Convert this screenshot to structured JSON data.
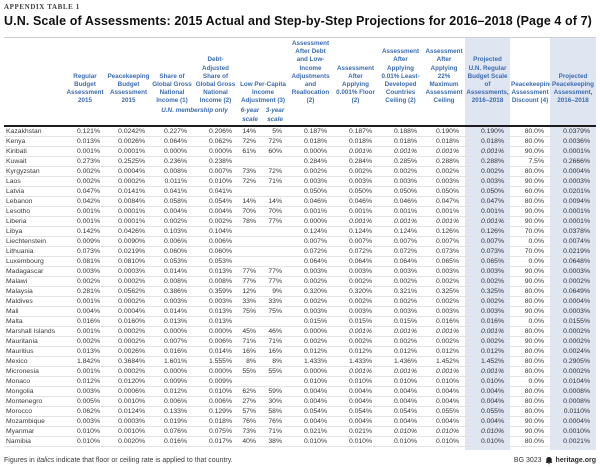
{
  "page": {
    "eyebrow": "APPENDIX TABLE 1",
    "title": "U.N. Scale of Assessments: 2015 Actual and Step-by-Step Projections for 2016–2018 (Page 4 of 7)",
    "footnote": {
      "prefix": "Figures in ",
      "italic_word": "italics",
      "suffix": " indicate that floor or ceiling rate is applied to that country."
    },
    "footer_right": {
      "report_id": "BG 3023",
      "logo_icon": "heritage-bell-logo",
      "site": "heritage.org"
    }
  },
  "colors": {
    "header_blue": "#3c6cb0",
    "highlight_column_bg": "#dfe5f1",
    "thick_rule": "#1c1c1c",
    "row_divider": "#e3e3e3"
  },
  "table": {
    "columns": [
      "",
      "Regular Budget Assess­ment 2015",
      "Peacekeeping Budget Assessment 2015",
      "Share of Global Gross National Income (1)",
      "Debt-Adjusted Share of Global Gross National Income (2)",
      "Low Per-Capita Income Adjustment (3)",
      "Assessment After Debt and Low-Income Adjustments and Reallocation (2)",
      "Assessment After Applying 0.001% Floor (2)",
      "Assessment After Applying 0.01% Least-Developed Countries Ceiling (2)",
      "Assessment After Applying 22% Maximum Assessment Ceiling",
      "Projected U.N. Regular Budget Scale of Assessments, 2016–2018",
      "Peacekeeping Assessment Discount (4)",
      "Projected Peacekeeping Assessment, 2016–2018"
    ],
    "subheaders": {
      "membership_note": "U.N. membership only",
      "six_year": "6-year scale",
      "three_year": "3-year scale"
    },
    "rows": [
      {
        "country": "Kazakhstan",
        "values": [
          "0.121%",
          "0.0242%",
          "0.227%",
          "0.206%",
          "14%",
          "5%",
          "0.187%",
          "0.187%",
          "0.188%",
          "0.190%",
          "0.190%",
          "80.0%",
          "0.0379%"
        ],
        "italics": []
      },
      {
        "country": "Kenya",
        "values": [
          "0.013%",
          "0.0026%",
          "0.064%",
          "0.062%",
          "72%",
          "72%",
          "0.018%",
          "0.018%",
          "0.018%",
          "0.018%",
          "0.018%",
          "80.0%",
          "0.0036%"
        ],
        "italics": []
      },
      {
        "country": "Kiribati",
        "values": [
          "0.001%",
          "0.0001%",
          "0.000%",
          "0.000%",
          "61%",
          "60%",
          "0.000%",
          "0.001%",
          "0.001%",
          "0.001%",
          "0.001%",
          "90.0%",
          "0.0001%"
        ],
        "italics": [
          7,
          8,
          9,
          10
        ]
      },
      {
        "country": "Kuwait",
        "values": [
          "0.273%",
          "0.2525%",
          "0.236%",
          "0.238%",
          "",
          "",
          "0.284%",
          "0.284%",
          "0.285%",
          "0.288%",
          "0.288%",
          "7.5%",
          "0.2666%"
        ],
        "italics": []
      },
      {
        "country": "Kyrgyzstan",
        "values": [
          "0.002%",
          "0.0004%",
          "0.008%",
          "0.007%",
          "73%",
          "72%",
          "0.002%",
          "0.002%",
          "0.002%",
          "0.002%",
          "0.002%",
          "80.0%",
          "0.0004%"
        ],
        "italics": []
      },
      {
        "country": "Laos",
        "values": [
          "0.002%",
          "0.0002%",
          "0.011%",
          "0.010%",
          "72%",
          "71%",
          "0.003%",
          "0.003%",
          "0.003%",
          "0.003%",
          "0.003%",
          "90.0%",
          "0.0003%"
        ],
        "italics": []
      },
      {
        "country": "Latvia",
        "values": [
          "0.047%",
          "0.0141%",
          "0.041%",
          "0.041%",
          "",
          "",
          "0.050%",
          "0.050%",
          "0.050%",
          "0.050%",
          "0.050%",
          "60.0%",
          "0.0201%"
        ],
        "italics": []
      },
      {
        "country": "Lebanon",
        "values": [
          "0.042%",
          "0.0084%",
          "0.058%",
          "0.054%",
          "14%",
          "14%",
          "0.046%",
          "0.046%",
          "0.046%",
          "0.047%",
          "0.047%",
          "80.0%",
          "0.0094%"
        ],
        "italics": []
      },
      {
        "country": "Lesotho",
        "values": [
          "0.001%",
          "0.0001%",
          "0.004%",
          "0.004%",
          "70%",
          "70%",
          "0.001%",
          "0.001%",
          "0.001%",
          "0.001%",
          "0.001%",
          "90.0%",
          "0.0001%"
        ],
        "italics": []
      },
      {
        "country": "Liberia",
        "values": [
          "0.001%",
          "0.0001%",
          "0.002%",
          "0.002%",
          "78%",
          "77%",
          "0.000%",
          "0.001%",
          "0.001%",
          "0.001%",
          "0.001%",
          "90.0%",
          "0.0001%"
        ],
        "italics": [
          7,
          8,
          9,
          10
        ]
      },
      {
        "country": "Libya",
        "values": [
          "0.142%",
          "0.0426%",
          "0.103%",
          "0.104%",
          "",
          "",
          "0.124%",
          "0.124%",
          "0.124%",
          "0.126%",
          "0.126%",
          "70.0%",
          "0.0378%"
        ],
        "italics": []
      },
      {
        "country": "Liechtenstein",
        "values": [
          "0.009%",
          "0.0090%",
          "0.006%",
          "0.006%",
          "",
          "",
          "0.007%",
          "0.007%",
          "0.007%",
          "0.007%",
          "0.007%",
          "0.0%",
          "0.0074%"
        ],
        "italics": []
      },
      {
        "country": "Lithuania",
        "values": [
          "0.073%",
          "0.0219%",
          "0.060%",
          "0.060%",
          "",
          "",
          "0.072%",
          "0.072%",
          "0.072%",
          "0.073%",
          "0.073%",
          "70.0%",
          "0.0219%"
        ],
        "italics": []
      },
      {
        "country": "Luxembourg",
        "values": [
          "0.081%",
          "0.0810%",
          "0.053%",
          "0.053%",
          "",
          "",
          "0.064%",
          "0.064%",
          "0.064%",
          "0.065%",
          "0.065%",
          "0.0%",
          "0.0648%"
        ],
        "italics": []
      },
      {
        "country": "Madagascar",
        "values": [
          "0.003%",
          "0.0003%",
          "0.014%",
          "0.013%",
          "77%",
          "77%",
          "0.003%",
          "0.003%",
          "0.003%",
          "0.003%",
          "0.003%",
          "90.0%",
          "0.0003%"
        ],
        "italics": []
      },
      {
        "country": "Malawi",
        "values": [
          "0.002%",
          "0.0002%",
          "0.008%",
          "0.008%",
          "77%",
          "77%",
          "0.002%",
          "0.002%",
          "0.002%",
          "0.002%",
          "0.002%",
          "90.0%",
          "0.0002%"
        ],
        "italics": []
      },
      {
        "country": "Malaysia",
        "values": [
          "0.281%",
          "0.0562%",
          "0.386%",
          "0.359%",
          "12%",
          "9%",
          "0.320%",
          "0.320%",
          "0.321%",
          "0.325%",
          "0.325%",
          "80.0%",
          "0.0649%"
        ],
        "italics": []
      },
      {
        "country": "Maldives",
        "values": [
          "0.001%",
          "0.0002%",
          "0.003%",
          "0.003%",
          "33%",
          "33%",
          "0.002%",
          "0.002%",
          "0.002%",
          "0.002%",
          "0.002%",
          "80.0%",
          "0.0004%"
        ],
        "italics": []
      },
      {
        "country": "Mali",
        "values": [
          "0.004%",
          "0.0004%",
          "0.014%",
          "0.013%",
          "75%",
          "75%",
          "0.003%",
          "0.003%",
          "0.003%",
          "0.003%",
          "0.003%",
          "90.0%",
          "0.0003%"
        ],
        "italics": []
      },
      {
        "country": "Malta",
        "values": [
          "0.016%",
          "0.0160%",
          "0.013%",
          "0.013%",
          "",
          "",
          "0.015%",
          "0.015%",
          "0.015%",
          "0.016%",
          "0.016%",
          "0.0%",
          "0.0155%"
        ],
        "italics": []
      },
      {
        "country": "Marshall Islands",
        "values": [
          "0.001%",
          "0.0002%",
          "0.000%",
          "0.000%",
          "45%",
          "46%",
          "0.000%",
          "0.001%",
          "0.001%",
          "0.001%",
          "0.001%",
          "80.0%",
          "0.0002%"
        ],
        "italics": [
          7,
          8,
          9,
          10
        ]
      },
      {
        "country": "Mauritania",
        "values": [
          "0.002%",
          "0.0002%",
          "0.007%",
          "0.006%",
          "71%",
          "71%",
          "0.002%",
          "0.002%",
          "0.002%",
          "0.002%",
          "0.002%",
          "90.0%",
          "0.0002%"
        ],
        "italics": []
      },
      {
        "country": "Mauritius",
        "values": [
          "0.013%",
          "0.0026%",
          "0.016%",
          "0.014%",
          "16%",
          "16%",
          "0.012%",
          "0.012%",
          "0.012%",
          "0.012%",
          "0.012%",
          "80.0%",
          "0.0024%"
        ],
        "italics": []
      },
      {
        "country": "Mexico",
        "values": [
          "1.842%",
          "0.3684%",
          "1.601%",
          "1.555%",
          "8%",
          "8%",
          "1.433%",
          "1.433%",
          "1.436%",
          "1.452%",
          "1.452%",
          "80.0%",
          "0.2905%"
        ],
        "italics": []
      },
      {
        "country": "Micronesia",
        "values": [
          "0.001%",
          "0.0002%",
          "0.000%",
          "0.000%",
          "55%",
          "55%",
          "0.000%",
          "0.001%",
          "0.001%",
          "0.001%",
          "0.001%",
          "80.0%",
          "0.0002%"
        ],
        "italics": [
          7,
          8,
          9,
          10
        ]
      },
      {
        "country": "Monaco",
        "values": [
          "0.012%",
          "0.0120%",
          "0.009%",
          "0.009%",
          "",
          "",
          "0.010%",
          "0.010%",
          "0.010%",
          "0.010%",
          "0.010%",
          "0.0%",
          "0.0104%"
        ],
        "italics": []
      },
      {
        "country": "Mongolia",
        "values": [
          "0.003%",
          "0.0006%",
          "0.012%",
          "0.010%",
          "62%",
          "59%",
          "0.004%",
          "0.004%",
          "0.004%",
          "0.004%",
          "0.004%",
          "80.0%",
          "0.0008%"
        ],
        "italics": []
      },
      {
        "country": "Montenegro",
        "values": [
          "0.005%",
          "0.0010%",
          "0.006%",
          "0.006%",
          "27%",
          "30%",
          "0.004%",
          "0.004%",
          "0.004%",
          "0.004%",
          "0.004%",
          "80.0%",
          "0.0008%"
        ],
        "italics": []
      },
      {
        "country": "Morocco",
        "values": [
          "0.062%",
          "0.0124%",
          "0.133%",
          "0.129%",
          "57%",
          "58%",
          "0.054%",
          "0.054%",
          "0.054%",
          "0.055%",
          "0.055%",
          "80.0%",
          "0.0110%"
        ],
        "italics": []
      },
      {
        "country": "Mozambique",
        "values": [
          "0.003%",
          "0.0003%",
          "0.019%",
          "0.018%",
          "76%",
          "76%",
          "0.004%",
          "0.004%",
          "0.004%",
          "0.004%",
          "0.004%",
          "90.0%",
          "0.0004%"
        ],
        "italics": []
      },
      {
        "country": "Myanmar",
        "values": [
          "0.010%",
          "0.0010%",
          "0.076%",
          "0.075%",
          "73%",
          "71%",
          "0.021%",
          "0.021%",
          "0.010%",
          "0.010%",
          "0.010%",
          "90.0%",
          "0.0010%"
        ],
        "italics": [
          8,
          9,
          10
        ]
      },
      {
        "country": "Namibia",
        "values": [
          "0.010%",
          "0.0020%",
          "0.016%",
          "0.017%",
          "40%",
          "38%",
          "0.010%",
          "0.010%",
          "0.010%",
          "0.010%",
          "0.010%",
          "80.0%",
          "0.0021%"
        ],
        "italics": []
      }
    ]
  }
}
